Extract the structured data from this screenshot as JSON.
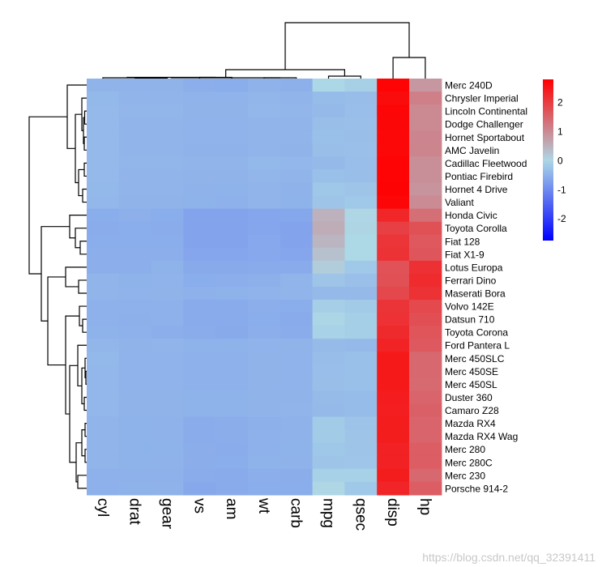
{
  "chart_data": {
    "type": "heatmap",
    "title": "",
    "scale": "row",
    "clustering": {
      "rows": true,
      "columns": true
    },
    "color_scale": {
      "low": "#0000FF",
      "mid": "#ADD8E6",
      "high": "#FF0000",
      "range": [
        -2.75,
        2.8
      ]
    },
    "legend": {
      "position": "right",
      "ticks": [
        "2",
        "1",
        "0",
        "-1",
        "-2"
      ],
      "tick_values": [
        2,
        1,
        0,
        -1,
        -2
      ]
    },
    "columns": [
      "cyl",
      "drat",
      "gear",
      "vs",
      "am",
      "wt",
      "carb",
      "mpg",
      "qsec",
      "disp",
      "hp"
    ],
    "rows": [
      "Merc 240D",
      "Chrysler Imperial",
      "Lincoln Continental",
      "Dodge Challenger",
      "Hornet Sportabout",
      "AMC Javelin",
      "Cadillac Fleetwood",
      "Pontiac Firebird",
      "Hornet 4 Drive",
      "Valiant",
      "Honda Civic",
      "Toyota Corolla",
      "Fiat 128",
      "Fiat X1-9",
      "Lotus Europa",
      "Ferrari Dino",
      "Maserati Bora",
      "Volvo 142E",
      "Datsun 710",
      "Toyota Corona",
      "Ford Pantera L",
      "Merc 450SLC",
      "Merc 450SE",
      "Merc 450SL",
      "Duster 360",
      "Camaro Z28",
      "Mazda RX4",
      "Mazda RX4 Wag",
      "Merc 280",
      "Merc 280C",
      "Merc 230",
      "Porsche 914-2"
    ],
    "values": [
      [
        -0.46,
        -0.47,
        -0.46,
        -0.53,
        -0.55,
        -0.48,
        -0.51,
        -0.01,
        -0.1,
        2.75,
        0.84
      ],
      [
        -0.41,
        -0.44,
        -0.45,
        -0.47,
        -0.47,
        -0.43,
        -0.44,
        -0.36,
        -0.34,
        2.65,
        1.16
      ],
      [
        -0.4,
        -0.43,
        -0.43,
        -0.46,
        -0.46,
        -0.42,
        -0.43,
        -0.38,
        -0.33,
        2.72,
        1.03
      ],
      [
        -0.39,
        -0.45,
        -0.44,
        -0.47,
        -0.47,
        -0.44,
        -0.45,
        -0.32,
        -0.3,
        2.71,
        1.03
      ],
      [
        -0.4,
        -0.44,
        -0.45,
        -0.47,
        -0.47,
        -0.44,
        -0.45,
        -0.31,
        -0.32,
        2.69,
        1.07
      ],
      [
        -0.4,
        -0.45,
        -0.45,
        -0.48,
        -0.48,
        -0.44,
        -0.46,
        -0.32,
        -0.3,
        2.69,
        1.08
      ],
      [
        -0.4,
        -0.43,
        -0.43,
        -0.45,
        -0.45,
        -0.41,
        -0.42,
        -0.38,
        -0.33,
        2.75,
        0.94
      ],
      [
        -0.4,
        -0.44,
        -0.44,
        -0.46,
        -0.46,
        -0.43,
        -0.44,
        -0.31,
        -0.32,
        2.75,
        0.94
      ],
      [
        -0.41,
        -0.45,
        -0.45,
        -0.48,
        -0.49,
        -0.45,
        -0.48,
        -0.22,
        -0.24,
        2.76,
        0.9
      ],
      [
        -0.42,
        -0.46,
        -0.46,
        -0.49,
        -0.5,
        -0.45,
        -0.49,
        -0.24,
        -0.21,
        2.72,
        1.0
      ],
      [
        -0.55,
        -0.51,
        -0.55,
        -0.67,
        -0.67,
        -0.64,
        -0.63,
        0.5,
        0.03,
        2.31,
        1.36
      ],
      [
        -0.56,
        -0.55,
        -0.56,
        -0.67,
        -0.67,
        -0.64,
        -0.67,
        0.57,
        0.04,
        1.98,
        1.75
      ],
      [
        -0.55,
        -0.55,
        -0.55,
        -0.66,
        -0.66,
        -0.61,
        -0.66,
        0.46,
        0.0,
        2.11,
        1.66
      ],
      [
        -0.53,
        -0.53,
        -0.53,
        -0.64,
        -0.64,
        -0.61,
        -0.64,
        0.3,
        0.0,
        2.15,
        1.68
      ],
      [
        -0.52,
        -0.52,
        -0.49,
        -0.59,
        -0.59,
        -0.58,
        -0.57,
        0.14,
        -0.2,
        1.74,
        2.18
      ],
      [
        -0.45,
        -0.49,
        -0.47,
        -0.55,
        -0.53,
        -0.51,
        -0.45,
        -0.24,
        -0.3,
        1.76,
        2.24
      ],
      [
        -0.44,
        -0.47,
        -0.46,
        -0.5,
        -0.49,
        -0.47,
        -0.44,
        -0.38,
        -0.38,
        1.88,
        2.15
      ],
      [
        -0.5,
        -0.5,
        -0.5,
        -0.57,
        -0.57,
        -0.53,
        -0.55,
        -0.11,
        -0.17,
        2.13,
        1.86
      ],
      [
        -0.5,
        -0.51,
        -0.5,
        -0.58,
        -0.58,
        -0.55,
        -0.58,
        -0.02,
        -0.13,
        2.17,
        1.79
      ],
      [
        -0.49,
        -0.5,
        -0.52,
        -0.56,
        -0.59,
        -0.53,
        -0.56,
        -0.08,
        -0.12,
        2.25,
        1.7
      ],
      [
        -0.43,
        -0.46,
        -0.45,
        -0.49,
        -0.49,
        -0.47,
        -0.46,
        -0.37,
        -0.38,
        2.35,
        1.64
      ],
      [
        -0.41,
        -0.47,
        -0.47,
        -0.5,
        -0.5,
        -0.46,
        -0.47,
        -0.34,
        -0.31,
        2.48,
        1.45
      ],
      [
        -0.42,
        -0.47,
        -0.47,
        -0.5,
        -0.5,
        -0.46,
        -0.47,
        -0.33,
        -0.31,
        2.48,
        1.45
      ],
      [
        -0.42,
        -0.47,
        -0.47,
        -0.5,
        -0.5,
        -0.46,
        -0.47,
        -0.32,
        -0.31,
        2.48,
        1.44
      ],
      [
        -0.42,
        -0.46,
        -0.46,
        -0.49,
        -0.49,
        -0.46,
        -0.46,
        -0.37,
        -0.36,
        2.44,
        1.5
      ],
      [
        -0.42,
        -0.46,
        -0.46,
        -0.49,
        -0.49,
        -0.46,
        -0.45,
        -0.38,
        -0.36,
        2.42,
        1.55
      ],
      [
        -0.45,
        -0.49,
        -0.48,
        -0.56,
        -0.54,
        -0.51,
        -0.48,
        -0.17,
        -0.25,
        2.43,
        1.5
      ],
      [
        -0.45,
        -0.49,
        -0.48,
        -0.56,
        -0.54,
        -0.5,
        -0.48,
        -0.17,
        -0.24,
        2.43,
        1.5
      ],
      [
        -0.45,
        -0.49,
        -0.49,
        -0.54,
        -0.56,
        -0.5,
        -0.49,
        -0.22,
        -0.24,
        2.37,
        1.59
      ],
      [
        -0.45,
        -0.49,
        -0.48,
        -0.54,
        -0.55,
        -0.49,
        -0.48,
        -0.24,
        -0.23,
        2.37,
        1.59
      ],
      [
        -0.5,
        -0.5,
        -0.5,
        -0.56,
        -0.58,
        -0.52,
        -0.54,
        -0.09,
        -0.09,
        2.43,
        1.45
      ],
      [
        -0.5,
        -0.49,
        -0.48,
        -0.6,
        -0.58,
        -0.55,
        -0.55,
        0.03,
        -0.2,
        2.32,
        1.6
      ]
    ]
  },
  "watermark": "https://blog.csdn.net/qq_32391411"
}
